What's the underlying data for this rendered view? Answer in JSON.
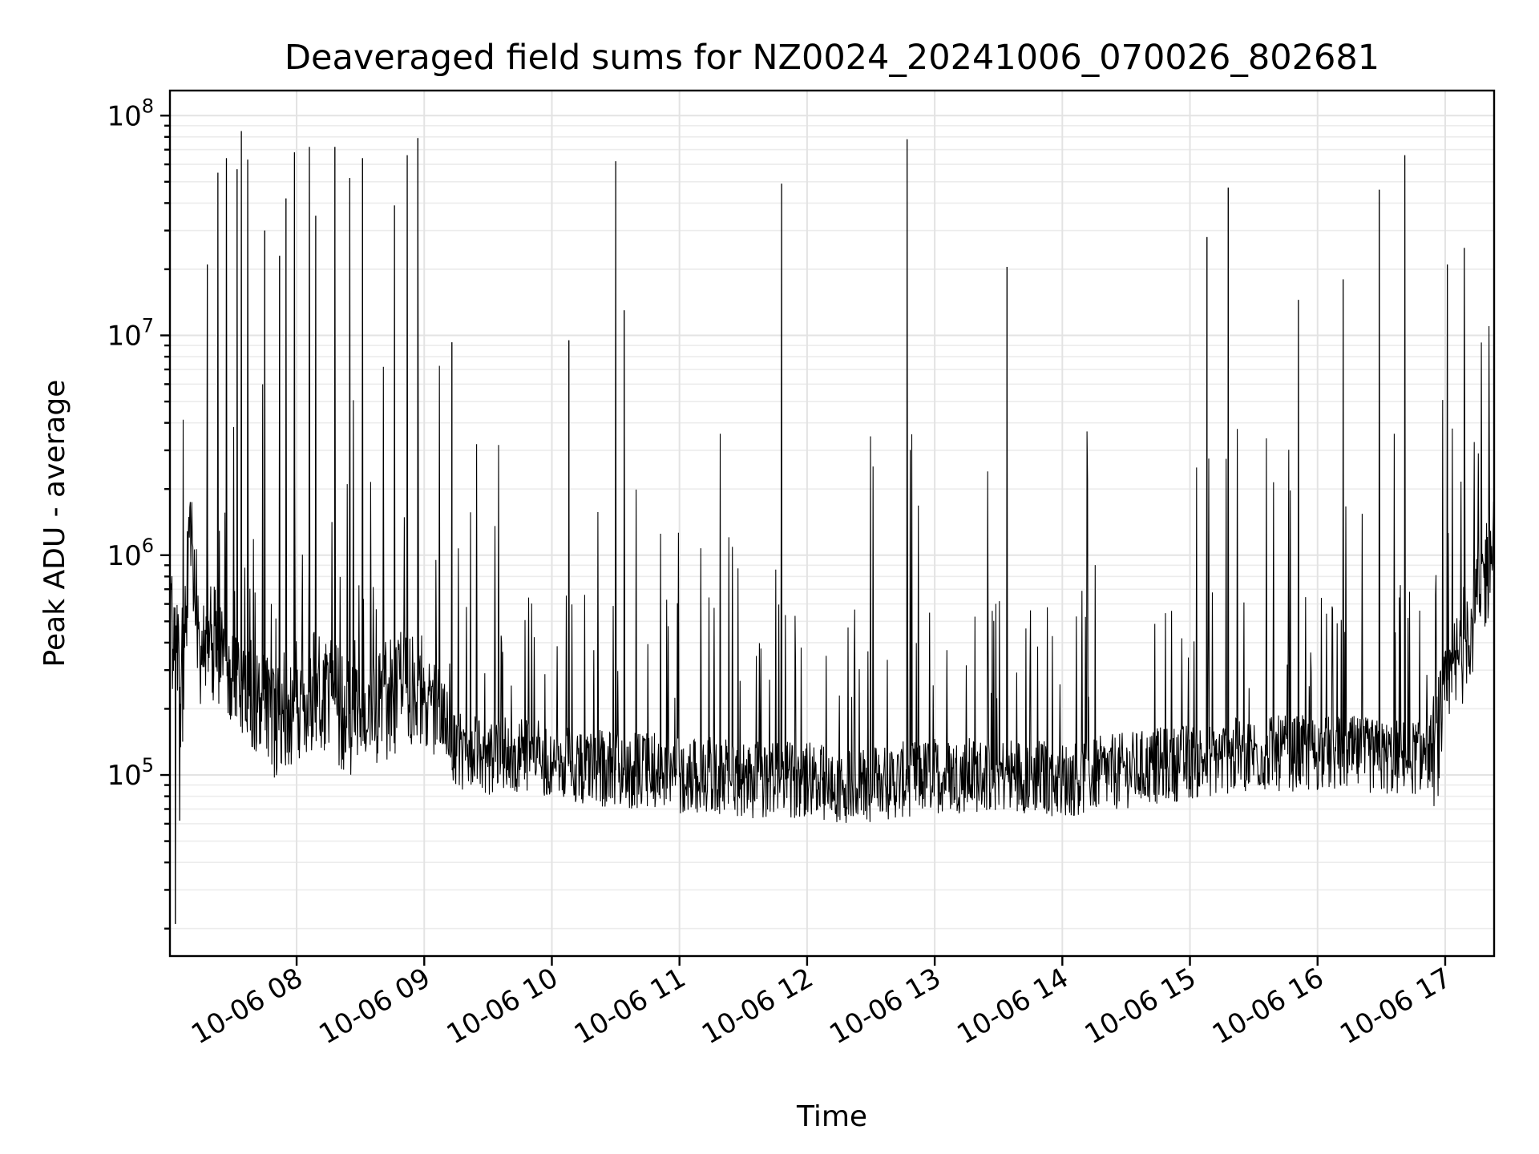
{
  "chart_data": {
    "type": "line",
    "title": "Deaveraged field sums for NZ0024_20241006_070026_802681",
    "xlabel": "Time",
    "ylabel": "Peak ADU - average",
    "yscale": "log",
    "ylim": [
      15000,
      130000000
    ],
    "xlim": [
      "2024-10-06T07:00:26",
      "2024-10-06T17:23:00"
    ],
    "grid": true,
    "x_ticks": [
      {
        "value": "2024-10-06T08:00",
        "label": "10-06 08"
      },
      {
        "value": "2024-10-06T09:00",
        "label": "10-06 09"
      },
      {
        "value": "2024-10-06T10:00",
        "label": "10-06 10"
      },
      {
        "value": "2024-10-06T11:00",
        "label": "10-06 11"
      },
      {
        "value": "2024-10-06T12:00",
        "label": "10-06 12"
      },
      {
        "value": "2024-10-06T13:00",
        "label": "10-06 13"
      },
      {
        "value": "2024-10-06T14:00",
        "label": "10-06 14"
      },
      {
        "value": "2024-10-06T15:00",
        "label": "10-06 15"
      },
      {
        "value": "2024-10-06T16:00",
        "label": "10-06 16"
      },
      {
        "value": "2024-10-06T17:00",
        "label": "10-06 17"
      }
    ],
    "y_ticks": [
      {
        "value": 100000,
        "base": "10",
        "exp": "5"
      },
      {
        "value": 1000000,
        "base": "10",
        "exp": "6"
      },
      {
        "value": 10000000,
        "base": "10",
        "exp": "7"
      },
      {
        "value": 100000000,
        "base": "10",
        "exp": "8"
      }
    ],
    "series": [
      {
        "color": "#000000",
        "x": [
          "2024-10-06T07:00:26",
          "2024-10-06T07:03:00",
          "2024-10-06T07:06:00",
          "2024-10-06T07:10:00",
          "2024-10-06T07:15:00",
          "2024-10-06T07:20:00",
          "2024-10-06T07:25:00",
          "2024-10-06T07:30:00",
          "2024-10-06T07:35:00",
          "2024-10-06T07:40:00",
          "2024-10-06T07:45:00",
          "2024-10-06T07:50:00",
          "2024-10-06T08:00:00",
          "2024-10-06T08:10:00",
          "2024-10-06T08:20:00",
          "2024-10-06T08:30:00",
          "2024-10-06T08:40:00",
          "2024-10-06T08:55:00",
          "2024-10-06T09:05:00",
          "2024-10-06T09:15:00",
          "2024-10-06T09:30:00",
          "2024-10-06T09:45:00",
          "2024-10-06T10:00:00",
          "2024-10-06T10:15:00",
          "2024-10-06T10:30:00",
          "2024-10-06T10:45:00",
          "2024-10-06T11:00:00",
          "2024-10-06T11:15:00",
          "2024-10-06T11:30:00",
          "2024-10-06T11:45:00",
          "2024-10-06T12:00:00",
          "2024-10-06T12:15:00",
          "2024-10-06T12:30:00",
          "2024-10-06T12:45:00",
          "2024-10-06T13:00:00",
          "2024-10-06T13:15:00",
          "2024-10-06T13:30:00",
          "2024-10-06T13:45:00",
          "2024-10-06T14:00:00",
          "2024-10-06T14:15:00",
          "2024-10-06T14:30:00",
          "2024-10-06T14:45:00",
          "2024-10-06T15:00:00",
          "2024-10-06T15:15:00",
          "2024-10-06T15:30:00",
          "2024-10-06T15:45:00",
          "2024-10-06T16:00:00",
          "2024-10-06T16:15:00",
          "2024-10-06T16:30:00",
          "2024-10-06T16:45:00",
          "2024-10-06T16:55:00",
          "2024-10-06T17:00:00",
          "2024-10-06T17:05:00",
          "2024-10-06T17:10:00",
          "2024-10-06T17:15:00",
          "2024-10-06T17:20:00",
          "2024-10-06T17:23:00"
        ],
        "y": [
          500000,
          400000,
          200000,
          1500000,
          300000,
          400000,
          350000,
          300000,
          260000,
          220000,
          200000,
          180000,
          220000,
          250000,
          200000,
          180000,
          210000,
          260000,
          230000,
          130000,
          120000,
          125000,
          115000,
          110000,
          105000,
          105000,
          100000,
          100000,
          95000,
          95000,
          95000,
          90000,
          90000,
          95000,
          100000,
          100000,
          100000,
          100000,
          95000,
          100000,
          105000,
          110000,
          115000,
          120000,
          125000,
          125000,
          125000,
          125000,
          120000,
          120000,
          130000,
          200000,
          300000,
          450000,
          600000,
          900000,
          1200000
        ]
      }
    ],
    "spikes": [
      {
        "x": "2024-10-06T07:18:00",
        "y": 21000000
      },
      {
        "x": "2024-10-06T07:23:00",
        "y": 55000000
      },
      {
        "x": "2024-10-06T07:27:00",
        "y": 64000000
      },
      {
        "x": "2024-10-06T07:32:00",
        "y": 57000000
      },
      {
        "x": "2024-10-06T07:34:00",
        "y": 85000000
      },
      {
        "x": "2024-10-06T07:37:00",
        "y": 63000000
      },
      {
        "x": "2024-10-06T07:45:00",
        "y": 30000000
      },
      {
        "x": "2024-10-06T07:52:00",
        "y": 23000000
      },
      {
        "x": "2024-10-06T07:55:00",
        "y": 42000000
      },
      {
        "x": "2024-10-06T07:59:00",
        "y": 68000000
      },
      {
        "x": "2024-10-06T08:06:00",
        "y": 72000000
      },
      {
        "x": "2024-10-06T08:09:00",
        "y": 35000000
      },
      {
        "x": "2024-10-06T08:18:00",
        "y": 72000000
      },
      {
        "x": "2024-10-06T08:25:00",
        "y": 52000000
      },
      {
        "x": "2024-10-06T08:31:00",
        "y": 64000000
      },
      {
        "x": "2024-10-06T08:46:00",
        "y": 39000000
      },
      {
        "x": "2024-10-06T08:52:00",
        "y": 66000000
      },
      {
        "x": "2024-10-06T08:57:00",
        "y": 79000000
      },
      {
        "x": "2024-10-06T09:13:00",
        "y": 9300000
      },
      {
        "x": "2024-10-06T10:08:00",
        "y": 9500000
      },
      {
        "x": "2024-10-06T10:30:00",
        "y": 62000000
      },
      {
        "x": "2024-10-06T10:34:00",
        "y": 13000000
      },
      {
        "x": "2024-10-06T11:48:00",
        "y": 49000000
      },
      {
        "x": "2024-10-06T12:47:00",
        "y": 78000000
      },
      {
        "x": "2024-10-06T13:34:00",
        "y": 20500000
      },
      {
        "x": "2024-10-06T15:08:00",
        "y": 28000000
      },
      {
        "x": "2024-10-06T15:18:00",
        "y": 47000000
      },
      {
        "x": "2024-10-06T15:51:00",
        "y": 14500000
      },
      {
        "x": "2024-10-06T16:12:00",
        "y": 18000000
      },
      {
        "x": "2024-10-06T16:29:00",
        "y": 46000000
      },
      {
        "x": "2024-10-06T16:41:00",
        "y": 66000000
      },
      {
        "x": "2024-10-06T17:01:00",
        "y": 21000000
      },
      {
        "x": "2024-10-06T17:09:00",
        "y": 25000000
      }
    ],
    "dips": [
      {
        "x": "2024-10-06T07:03:00",
        "y": 21000
      },
      {
        "x": "2024-10-06T07:05:00",
        "y": 62000
      }
    ]
  }
}
